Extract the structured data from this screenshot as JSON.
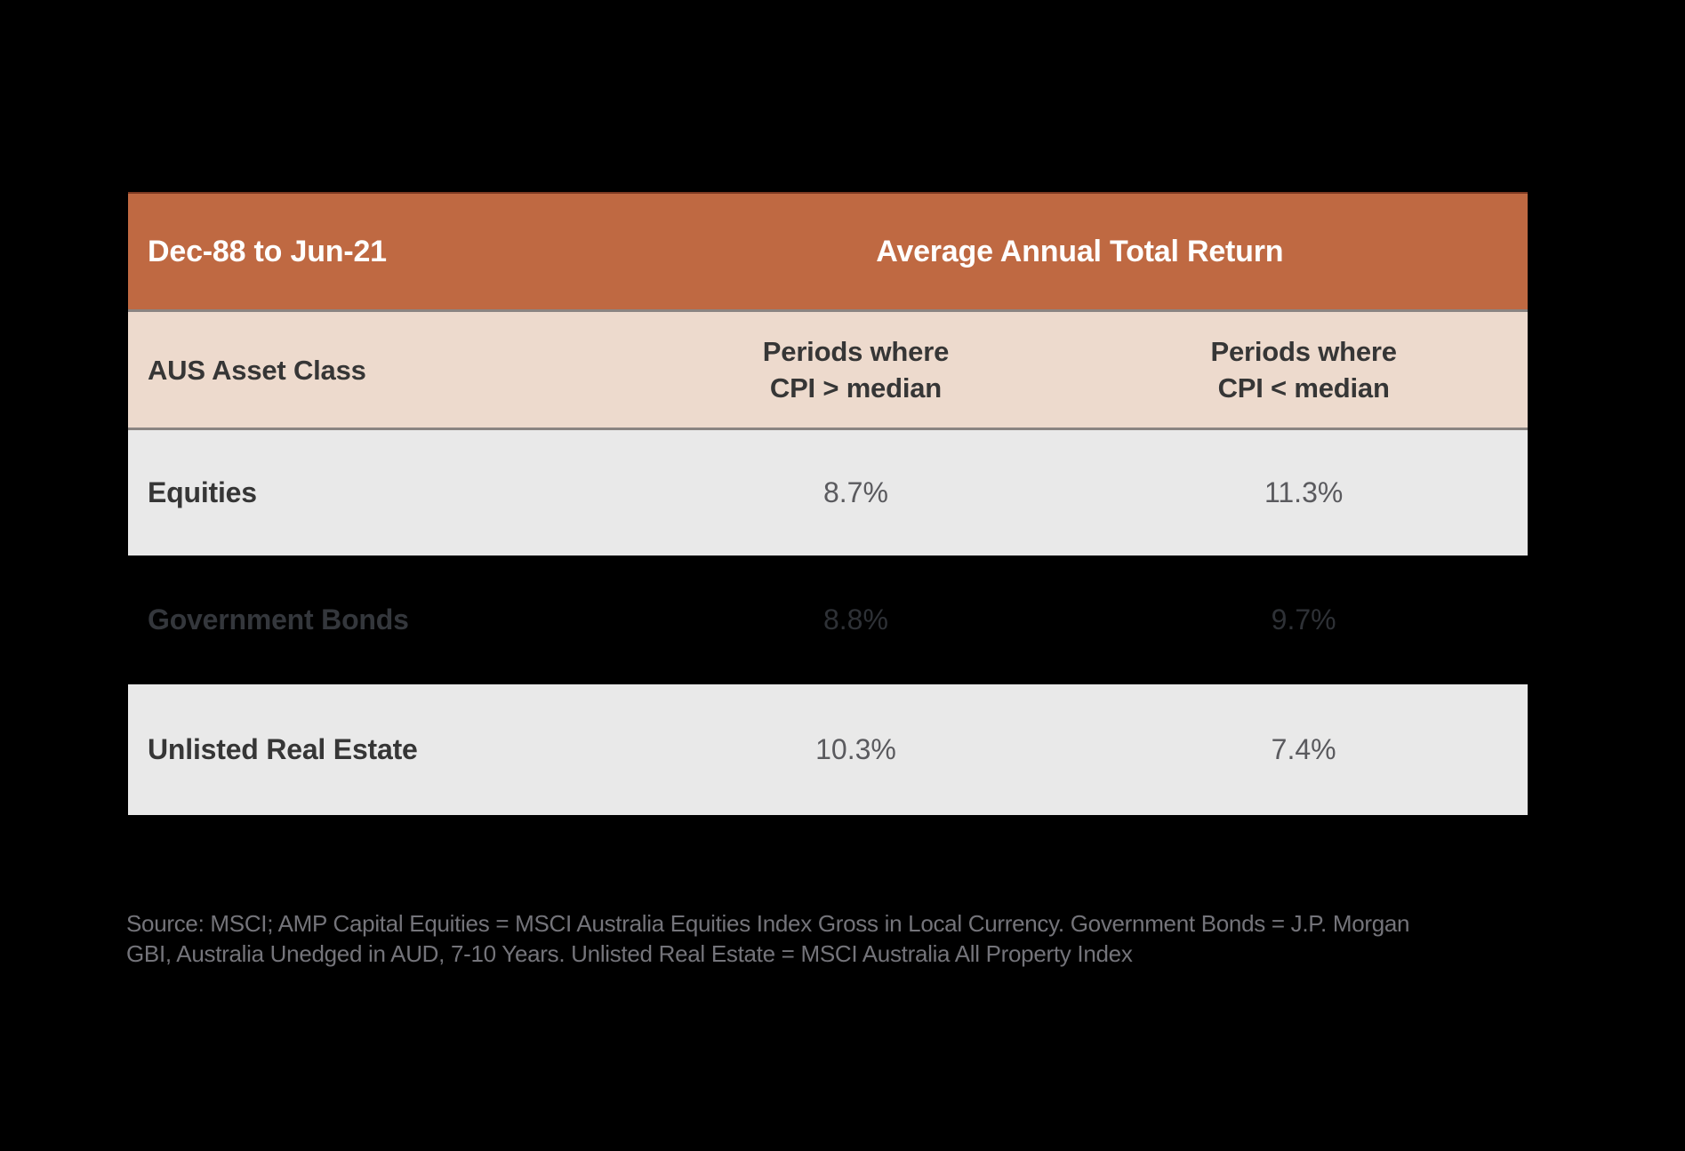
{
  "chart_data": {
    "type": "table",
    "title": "Average Annual Total Return",
    "period": "Dec-88 to Jun-21",
    "columns": [
      "AUS Asset Class",
      "Periods where CPI > median",
      "Periods where CPI < median"
    ],
    "rows": [
      [
        "Equities",
        "8.7%",
        "11.3%"
      ],
      [
        "Government Bonds",
        "8.8%",
        "9.7%"
      ],
      [
        "Unlisted Real Estate",
        "10.3%",
        "7.4%"
      ]
    ],
    "categories": [
      "Equities",
      "Government Bonds",
      "Unlisted Real Estate"
    ],
    "series": [
      {
        "name": "Periods where CPI > median",
        "values": [
          8.7,
          8.8,
          10.3
        ]
      },
      {
        "name": "Periods where CPI < median",
        "values": [
          11.3,
          9.7,
          7.4
        ]
      }
    ],
    "unit": "%"
  },
  "table": {
    "period_label": "Dec-88 to Jun-21",
    "header_title": "Average Annual Total Return",
    "col_header_lines": [
      [
        "Periods where",
        "CPI > median"
      ],
      [
        "Periods where",
        "CPI < median"
      ]
    ]
  },
  "source": {
    "line1": "Source: MSCI; AMP Capital Equities = MSCI Australia Equities Index Gross in Local Currency. Government Bonds = J.P. Morgan",
    "line2": "GBI, Australia Unedged in AUD, 7-10 Years. Unlisted Real Estate  = MSCI Australia All Property Index"
  },
  "colors": {
    "page-bg": "#000000",
    "header-bg": "#bf6942",
    "header-border-top": "#7e3a22",
    "header-text": "#ffffff",
    "subheader-bg": "#eddacd",
    "separator": "#8a8482",
    "row-bg": "#e9e9e9",
    "row-alt-bg": "#000000",
    "label-text": "#363636",
    "value-text": "#5a5a5e",
    "dark-row-label": "#34373c",
    "dark-row-value": "#2e3136",
    "source-text": "#74747a"
  }
}
